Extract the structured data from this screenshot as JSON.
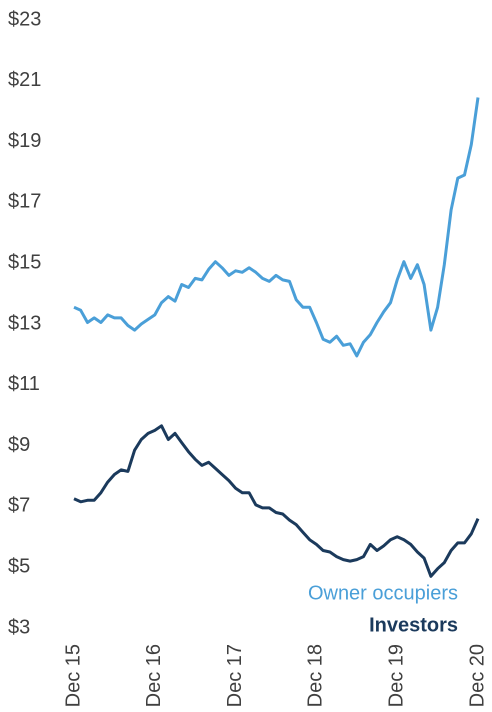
{
  "chart_data": {
    "type": "line",
    "categories": [
      "Dec 15",
      null,
      null,
      null,
      null,
      null,
      null,
      null,
      null,
      null,
      null,
      null,
      "Dec 16",
      null,
      null,
      null,
      null,
      null,
      null,
      null,
      null,
      null,
      null,
      null,
      "Dec 17",
      null,
      null,
      null,
      null,
      null,
      null,
      null,
      null,
      null,
      null,
      null,
      "Dec 18",
      null,
      null,
      null,
      null,
      null,
      null,
      null,
      null,
      null,
      null,
      null,
      "Dec 19",
      null,
      null,
      null,
      null,
      null,
      null,
      null,
      null,
      null,
      null,
      null,
      "Dec 20"
    ],
    "series": [
      {
        "name": "Owner occupiers",
        "color": "#4a9fd8",
        "values": [
          13.55,
          13.45,
          13.05,
          13.2,
          13.05,
          13.3,
          13.2,
          13.2,
          12.95,
          12.8,
          13.0,
          13.15,
          13.3,
          13.7,
          13.9,
          13.75,
          14.3,
          14.2,
          14.5,
          14.45,
          14.8,
          15.05,
          14.85,
          14.6,
          14.75,
          14.7,
          14.85,
          14.7,
          14.5,
          14.4,
          14.6,
          14.45,
          14.4,
          13.8,
          13.55,
          13.55,
          13.05,
          12.5,
          12.4,
          12.6,
          12.3,
          12.35,
          11.95,
          12.4,
          12.65,
          13.05,
          13.4,
          13.7,
          14.45,
          15.05,
          14.5,
          14.95,
          14.3,
          12.8,
          13.55,
          14.95,
          16.75,
          17.8,
          17.9,
          18.9,
          20.45
        ]
      },
      {
        "name": "Investors",
        "color": "#1b3a5c",
        "values": [
          7.25,
          7.15,
          7.2,
          7.2,
          7.45,
          7.8,
          8.05,
          8.2,
          8.15,
          8.85,
          9.2,
          9.4,
          9.5,
          9.65,
          9.2,
          9.4,
          9.1,
          8.8,
          8.55,
          8.35,
          8.45,
          8.25,
          8.05,
          7.85,
          7.6,
          7.45,
          7.45,
          7.05,
          6.95,
          6.95,
          6.8,
          6.75,
          6.55,
          6.4,
          6.15,
          5.9,
          5.75,
          5.55,
          5.5,
          5.35,
          5.25,
          5.2,
          5.25,
          5.35,
          5.75,
          5.55,
          5.7,
          5.9,
          6.0,
          5.9,
          5.75,
          5.5,
          5.3,
          4.7,
          4.95,
          5.15,
          5.55,
          5.8,
          5.8,
          6.1,
          6.6
        ]
      }
    ],
    "ylim": [
      3,
      23
    ],
    "yticks": [
      {
        "value": 3,
        "label": "$3"
      },
      {
        "value": 5,
        "label": "$5"
      },
      {
        "value": 7,
        "label": "$7"
      },
      {
        "value": 9,
        "label": "$9"
      },
      {
        "value": 11,
        "label": "$11"
      },
      {
        "value": 13,
        "label": "$13"
      },
      {
        "value": 15,
        "label": "$15"
      },
      {
        "value": 17,
        "label": "$17"
      },
      {
        "value": 19,
        "label": "$19"
      },
      {
        "value": 21,
        "label": "$21"
      },
      {
        "value": 23,
        "label": "$23"
      }
    ]
  }
}
